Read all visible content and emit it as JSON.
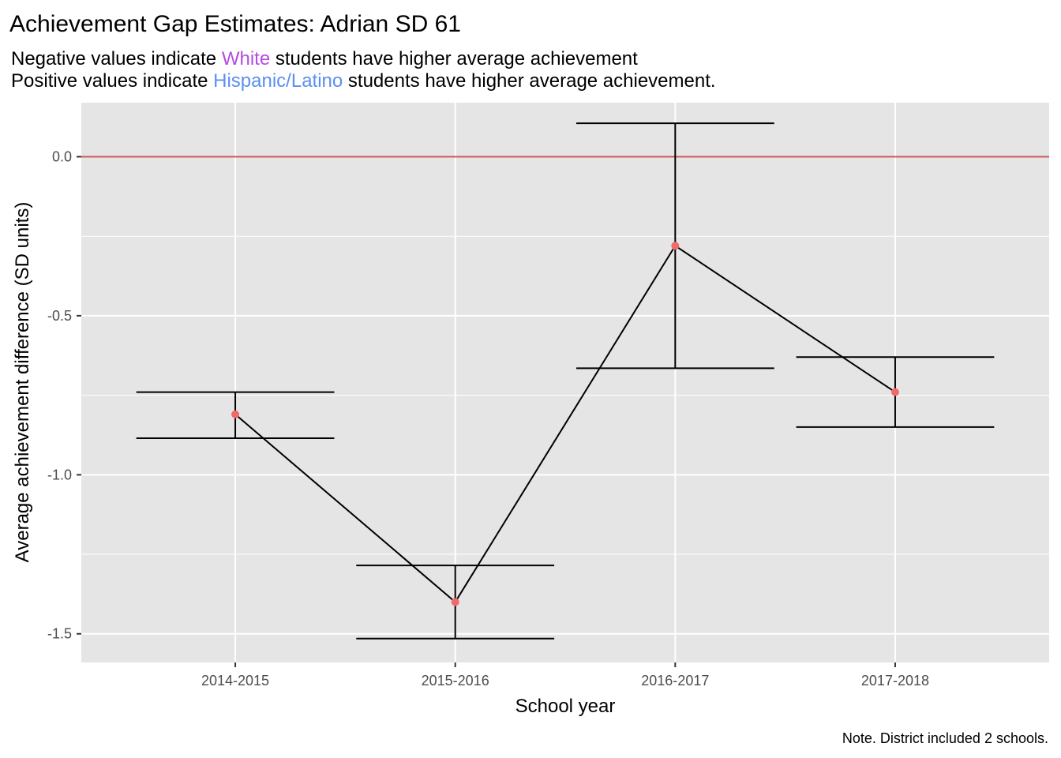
{
  "chart_data": {
    "type": "line",
    "title": "Achievement Gap Estimates: Adrian SD 61",
    "subtitle": {
      "line1": {
        "before": "Negative values indicate ",
        "highlight": "White",
        "after": " students have higher average achievement"
      },
      "line2": {
        "before": "Positive values indicate ",
        "highlight": "Hispanic/Latino",
        "after": " students have higher average achievement."
      }
    },
    "xlabel": "School year",
    "ylabel": "Average achievement difference (SD units)",
    "caption": "Note. District included 2 schools.",
    "categories": [
      "2014-2015",
      "2015-2016",
      "2016-2017",
      "2017-2018"
    ],
    "values": [
      -0.81,
      -1.4,
      -0.28,
      -0.74
    ],
    "error_lower": [
      -0.885,
      -1.515,
      -0.665,
      -0.85
    ],
    "error_upper": [
      -0.74,
      -1.285,
      0.105,
      -0.63
    ],
    "yticks": [
      0.0,
      -0.5,
      -1.0,
      -1.5
    ],
    "ytick_labels": [
      "0.0",
      "-0.5",
      "-1.0",
      "-1.5"
    ],
    "ylim": [
      -1.59,
      0.17
    ],
    "reference_line": 0,
    "grid": true,
    "colors": {
      "panel": "#e5e5e5",
      "grid": "#ffffff",
      "reference_line": "#cd5c5c",
      "point": "#f06a6a",
      "line": "#000000",
      "white_highlight": "#b44be1",
      "hispanic_highlight": "#5b8ff0"
    }
  }
}
